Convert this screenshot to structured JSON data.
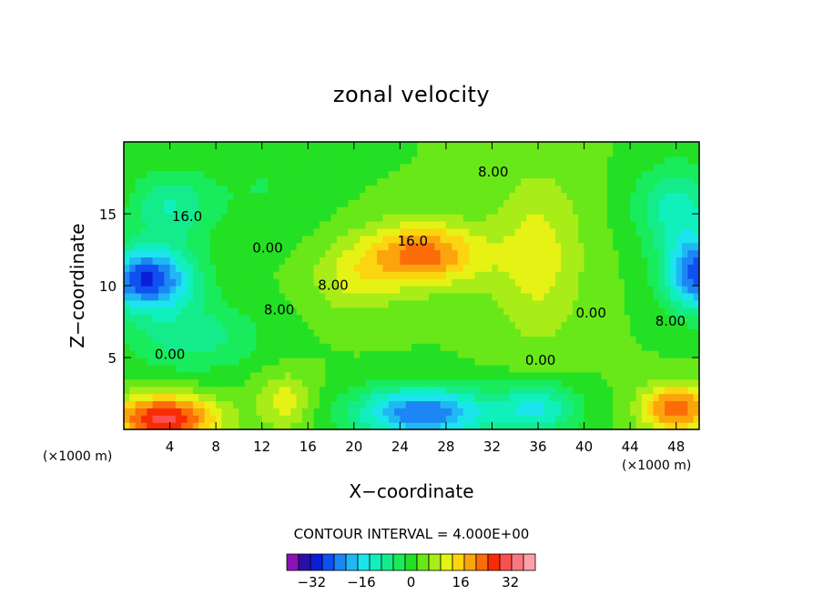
{
  "chart_data": {
    "type": "heatmap",
    "title": "zonal velocity",
    "xlabel": "X−coordinate",
    "ylabel": "Z−coordinate",
    "x_unit": "(×1000 m)",
    "z_unit": "(×1000 m)",
    "xlim": [
      0,
      50
    ],
    "ylim": [
      0,
      20
    ],
    "x_ticks": [
      "4",
      "8",
      "12",
      "16",
      "20",
      "24",
      "28",
      "32",
      "36",
      "40",
      "44",
      "48"
    ],
    "x_tick_values": [
      4,
      8,
      12,
      16,
      20,
      24,
      28,
      32,
      36,
      40,
      44,
      48
    ],
    "y_ticks": [
      "5",
      "10",
      "15"
    ],
    "y_tick_values": [
      5,
      10,
      15
    ],
    "contour_interval_text": "CONTOUR INTERVAL = 4.000E+00",
    "contour_interval": 4.0,
    "colorbar": {
      "tick_labels": [
        "−32",
        "−16",
        "0",
        "16",
        "32"
      ],
      "tick_values": [
        -32,
        -16,
        0,
        16,
        32
      ],
      "bins": [
        -40,
        -36,
        -32,
        -28,
        -24,
        -20,
        -16,
        -12,
        -8,
        -4,
        0,
        4,
        8,
        12,
        16,
        20,
        24,
        28,
        32,
        36,
        40
      ],
      "colors": [
        "#8a12b8",
        "#2a10a8",
        "#0a1ed8",
        "#1050f0",
        "#1c86f4",
        "#20b8f4",
        "#1ce4ec",
        "#10f0bc",
        "#14ec8c",
        "#18ec5c",
        "#24e024",
        "#68e818",
        "#a8ec18",
        "#e6f214",
        "#fcd410",
        "#fca40c",
        "#fc6c08",
        "#f82c04",
        "#fc5050",
        "#fc7880",
        "#fca0ac"
      ]
    },
    "contour_labels": [
      {
        "text": "16.0",
        "x": 5.5,
        "z": 14.5
      },
      {
        "text": "0.00",
        "x": 12.5,
        "z": 12.3
      },
      {
        "text": "8.00",
        "x": 13.5,
        "z": 8.0
      },
      {
        "text": "8.00",
        "x": 18.2,
        "z": 9.7
      },
      {
        "text": "16.0",
        "x": 25.1,
        "z": 12.8
      },
      {
        "text": "8.00",
        "x": 32.1,
        "z": 17.6
      },
      {
        "text": "0.00",
        "x": 40.6,
        "z": 7.8
      },
      {
        "text": "8.00",
        "x": 47.5,
        "z": 7.2
      },
      {
        "text": "0.00",
        "x": 4.0,
        "z": 4.9
      },
      {
        "text": "0.00",
        "x": 36.2,
        "z": 4.5
      }
    ],
    "field_features": [
      {
        "x": 26,
        "z": 12.2,
        "value": 22,
        "sx": 5.0,
        "sz": 2.2
      },
      {
        "x": 20,
        "z": 10.5,
        "value": 8,
        "sx": 4.0,
        "sz": 2.5
      },
      {
        "x": 2,
        "z": 10.5,
        "value": -32,
        "sx": 4.0,
        "sz": 2.2
      },
      {
        "x": 4,
        "z": 15.5,
        "value": -12,
        "sx": 3.5,
        "sz": 2.5
      },
      {
        "x": 50,
        "z": 10.8,
        "value": -30,
        "sx": 3.0,
        "sz": 2.6
      },
      {
        "x": 48,
        "z": 15.5,
        "value": -14,
        "sx": 3.5,
        "sz": 3.0
      },
      {
        "x": 3.5,
        "z": 0.8,
        "value": 30,
        "sx": 4.5,
        "sz": 1.6
      },
      {
        "x": 48,
        "z": 1.5,
        "value": 24,
        "sx": 3.0,
        "sz": 1.6
      },
      {
        "x": 26,
        "z": 1.2,
        "value": -28,
        "sx": 6.0,
        "sz": 1.8
      },
      {
        "x": 36,
        "z": 1.5,
        "value": -16,
        "sx": 3.5,
        "sz": 1.8
      },
      {
        "x": 14,
        "z": 2.0,
        "value": 10,
        "sx": 2.5,
        "sz": 2.0
      },
      {
        "x": 6,
        "z": 6.5,
        "value": -10,
        "sx": 6.0,
        "sz": 2.5
      },
      {
        "x": 12,
        "z": 17.0,
        "value": -4,
        "sx": 5.0,
        "sz": 4.0
      },
      {
        "x": 36,
        "z": 12.0,
        "value": 10,
        "sx": 4.0,
        "sz": 6.0
      }
    ],
    "field_base": 4,
    "grid": false
  }
}
